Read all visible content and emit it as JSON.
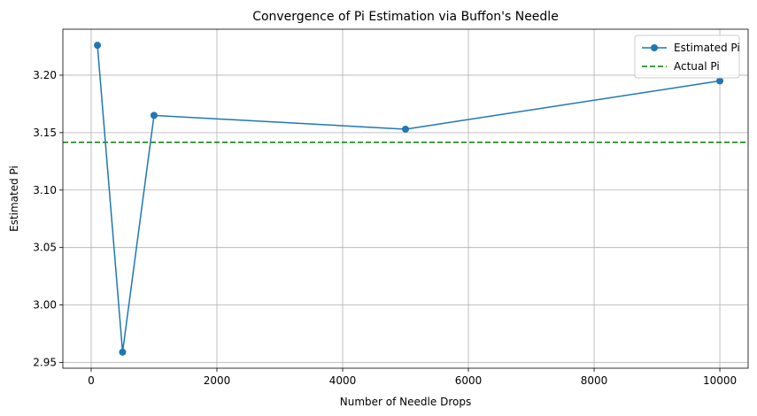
{
  "chart_data": {
    "type": "line",
    "title": "Convergence of Pi Estimation via Buffon's Needle",
    "xlabel": "Number of Needle Drops",
    "ylabel": "Estimated Pi",
    "xlim": [
      -450,
      10450
    ],
    "ylim": [
      2.945,
      3.24
    ],
    "x_ticks": [
      0,
      2000,
      4000,
      6000,
      8000,
      10000
    ],
    "x_tick_labels": [
      "0",
      "2000",
      "4000",
      "6000",
      "8000",
      "10000"
    ],
    "y_ticks": [
      2.95,
      3.0,
      3.05,
      3.1,
      3.15,
      3.2
    ],
    "y_tick_labels": [
      "2.95",
      "3.00",
      "3.05",
      "3.10",
      "3.15",
      "3.20"
    ],
    "grid": true,
    "legend_position": "top-right",
    "series": [
      {
        "name": "Estimated Pi",
        "style": "solid-with-markers",
        "color": "#1f77b4",
        "x": [
          100,
          500,
          1000,
          5000,
          10000
        ],
        "y": [
          3.226,
          2.959,
          3.165,
          3.153,
          3.195
        ]
      }
    ],
    "reference_lines": [
      {
        "name": "Actual Pi",
        "orientation": "horizontal",
        "value": 3.14159,
        "style": "dashed",
        "color": "#008000"
      }
    ]
  }
}
